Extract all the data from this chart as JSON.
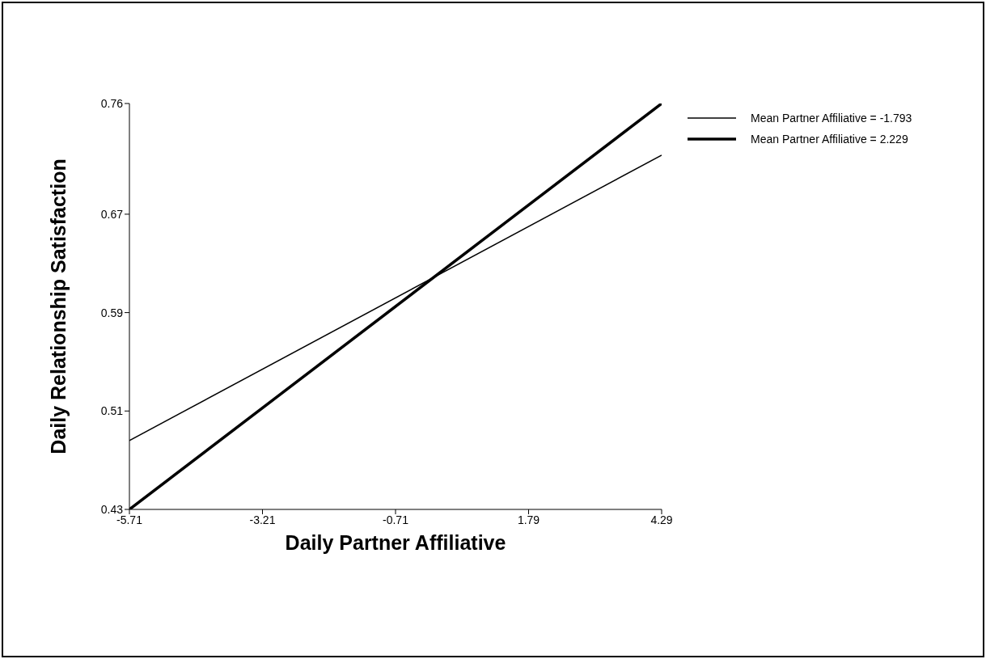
{
  "chart_data": {
    "type": "line",
    "xlabel": "Daily Partner Affiliative",
    "ylabel": "Daily Relationship Satisfaction",
    "xlim": [
      -5.71,
      4.29
    ],
    "xticks": [
      -5.71,
      -3.21,
      -0.71,
      1.79,
      4.29
    ],
    "ylim": [
      0.43,
      0.76
    ],
    "yticks": [
      0.43,
      0.51,
      0.59,
      0.67,
      0.76
    ],
    "x": [
      -5.71,
      4.29
    ],
    "grid": false,
    "legend": "top right",
    "marker": "none",
    "line_style": "solid",
    "series": [
      {
        "name": "Mean Partner Affiliative = -1.793",
        "color": "#000000",
        "values": [
          0.486,
          0.718
        ]
      },
      {
        "name": "Mean Partner Affiliative = 2.229",
        "color": "#000000",
        "values": [
          0.43,
          0.76
        ]
      }
    ]
  }
}
